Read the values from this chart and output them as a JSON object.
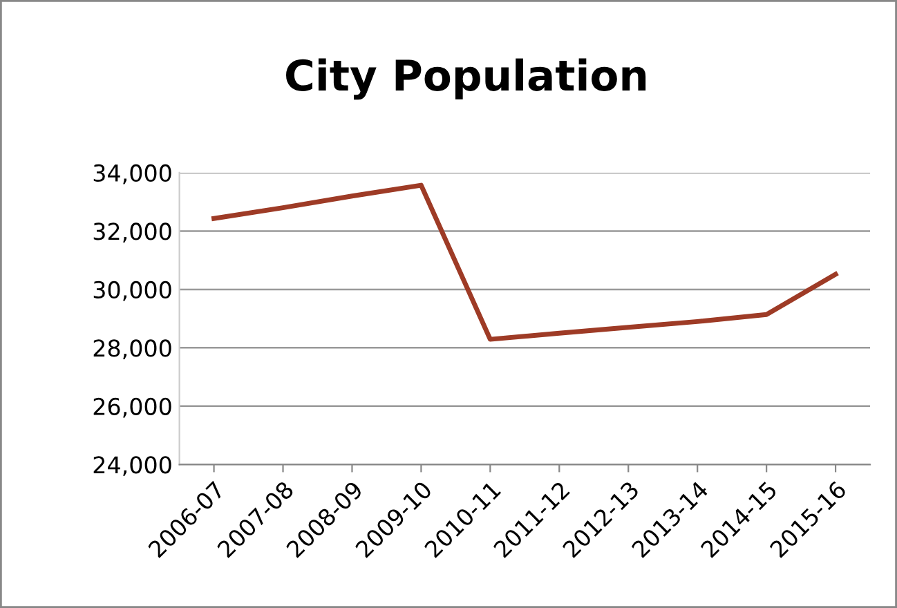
{
  "chart_data": {
    "type": "line",
    "title": "City Population",
    "categories": [
      "2006-07",
      "2007-08",
      "2008-09",
      "2009-10",
      "2010-11",
      "2011-12",
      "2012-13",
      "2013-14",
      "2014-15",
      "2015-16"
    ],
    "series": [
      {
        "color": "#9e3b26",
        "values": [
          32430,
          32800,
          33200,
          33570,
          28290,
          28500,
          28700,
          28900,
          29140,
          30520
        ]
      }
    ],
    "ylim": [
      24000,
      34000
    ],
    "yticks": [
      {
        "value": 24000,
        "label": "24,000"
      },
      {
        "value": 26000,
        "label": "26,000"
      },
      {
        "value": 28000,
        "label": "28,000"
      },
      {
        "value": 30000,
        "label": "30,000"
      },
      {
        "value": 32000,
        "label": "32,000"
      },
      {
        "value": 34000,
        "label": "34,000"
      }
    ],
    "grid": "y",
    "marker": "none",
    "line_style": "solid"
  }
}
